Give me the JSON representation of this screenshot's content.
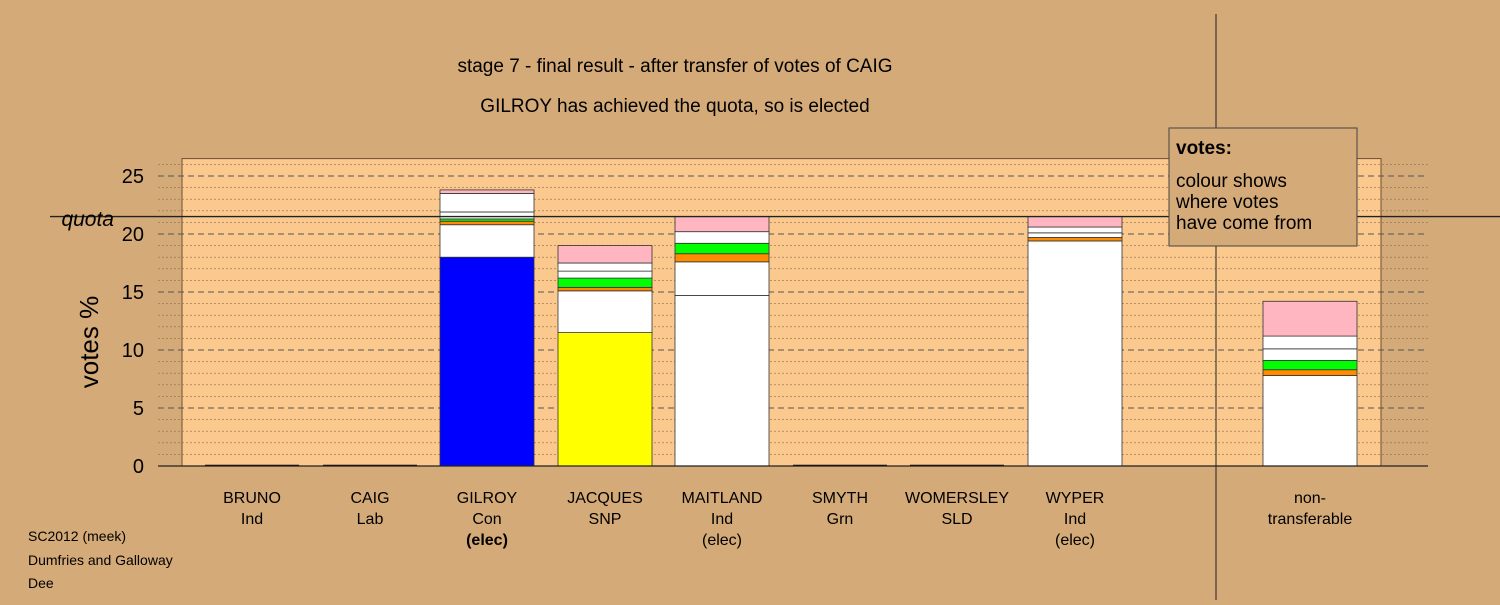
{
  "colors": {
    "background": "#d4aa78",
    "plot_area": "#fbc98e",
    "con": "#0000ff",
    "snp": "#ffff00",
    "ind": "#ffffff",
    "lab": "#ff8c00",
    "grn": "#00ff00",
    "sld": "#ffb6c1"
  },
  "header": {
    "title": "stage 7 - final result - after transfer of votes of CAIG",
    "subtitle": "GILROY has achieved the quota, so is elected"
  },
  "legend": {
    "heading": "votes:",
    "lines": [
      "colour shows",
      "where votes",
      "have come from"
    ]
  },
  "footer": {
    "line1": "SC2012 (meek)",
    "line2": "Dumfries and Galloway",
    "line3": "Dee"
  },
  "chart_data": {
    "type": "bar",
    "stacked": true,
    "ylabel": "votes %",
    "ylim": [
      0,
      26.5
    ],
    "yticks": [
      0,
      5,
      10,
      15,
      20,
      25
    ],
    "quota": 21.5,
    "quota_label": "quota",
    "grid": "horizontal dashed",
    "categories": [
      {
        "name": "BRUNO",
        "party": "Ind",
        "status": ""
      },
      {
        "name": "CAIG",
        "party": "Lab",
        "status": ""
      },
      {
        "name": "GILROY",
        "party": "Con",
        "status": "(elec)"
      },
      {
        "name": "JACQUES",
        "party": "SNP",
        "status": ""
      },
      {
        "name": "MAITLAND",
        "party": "Ind",
        "status": "(elec)"
      },
      {
        "name": "SMYTH",
        "party": "Grn",
        "status": ""
      },
      {
        "name": "WOMERSLEY",
        "party": "SLD",
        "status": ""
      },
      {
        "name": "WYPER",
        "party": "Ind",
        "status": "(elec)"
      },
      {
        "name": "non-",
        "party": "transferable",
        "status": ""
      }
    ],
    "stacks": [
      [],
      [],
      [
        {
          "color": "#0000ff",
          "value": 18.0
        },
        {
          "color": "#ffffff",
          "value": 2.8
        },
        {
          "color": "#ff8c00",
          "value": 0.3
        },
        {
          "color": "#00ff00",
          "value": 0.2
        },
        {
          "color": "#ffffff",
          "value": 0.6
        },
        {
          "color": "#ffffff",
          "value": 1.6
        },
        {
          "color": "#ffb6c1",
          "value": 0.3
        }
      ],
      [
        {
          "color": "#ffff00",
          "value": 11.5
        },
        {
          "color": "#ffffff",
          "value": 3.6
        },
        {
          "color": "#ff8c00",
          "value": 0.3
        },
        {
          "color": "#00ff00",
          "value": 0.8
        },
        {
          "color": "#ffffff",
          "value": 0.6
        },
        {
          "color": "#ffffff",
          "value": 0.7
        },
        {
          "color": "#ffb6c1",
          "value": 1.5
        }
      ],
      [
        {
          "color": "#ffffff",
          "value": 14.7
        },
        {
          "color": "#ffffff",
          "value": 2.9
        },
        {
          "color": "#ff8c00",
          "value": 0.7
        },
        {
          "color": "#00ff00",
          "value": 0.9
        },
        {
          "color": "#ffffff",
          "value": 1.0
        },
        {
          "color": "#ffb6c1",
          "value": 1.3
        }
      ],
      [],
      [],
      [
        {
          "color": "#ffffff",
          "value": 19.4
        },
        {
          "color": "#ff8c00",
          "value": 0.3
        },
        {
          "color": "#ffffff",
          "value": 0.4
        },
        {
          "color": "#ffffff",
          "value": 0.5
        },
        {
          "color": "#ffb6c1",
          "value": 0.9
        }
      ],
      [
        {
          "color": "#ffffff",
          "value": 7.8
        },
        {
          "color": "#ff8c00",
          "value": 0.5
        },
        {
          "color": "#00ff00",
          "value": 0.8
        },
        {
          "color": "#ffffff",
          "value": 1.0
        },
        {
          "color": "#ffffff",
          "value": 1.1
        },
        {
          "color": "#ffb6c1",
          "value": 3.0
        }
      ]
    ]
  }
}
